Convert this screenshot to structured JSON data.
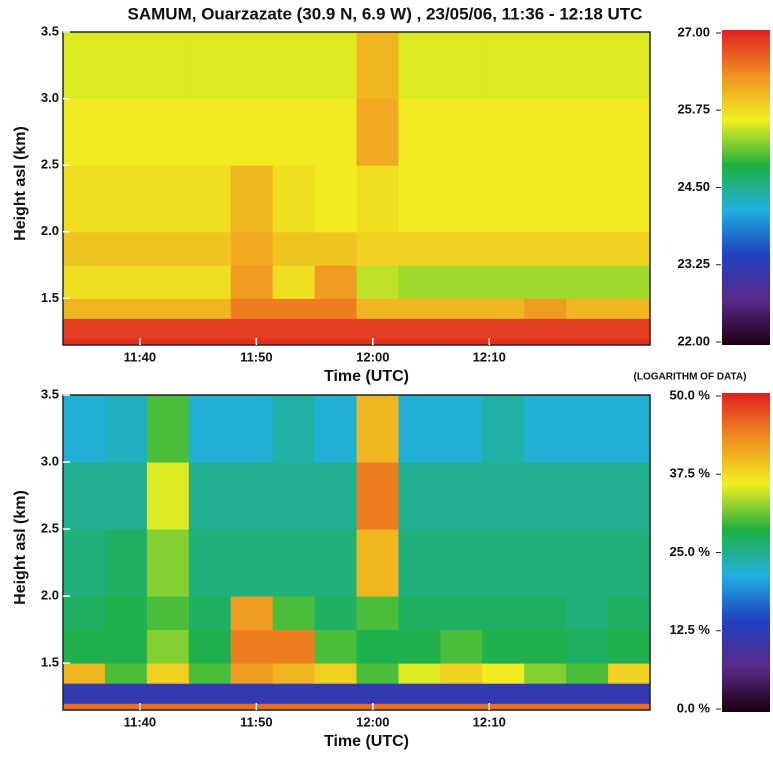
{
  "chart_data": [
    {
      "type": "heatmap",
      "title": "SAMUM, Ouarzazate (30.9 N, 6.9 W) , 23/05/06, 11:36 - 12:18 UTC",
      "xlabel": "Time (UTC)",
      "ylabel": "Height asl (km)",
      "xlim": [
        693.4,
        743.8
      ],
      "xticks": [
        {
          "value": 700,
          "label": "11:40"
        },
        {
          "value": 710,
          "label": "11:50"
        },
        {
          "value": 720,
          "label": "12:00"
        },
        {
          "value": 730,
          "label": "12:10"
        }
      ],
      "ylim": [
        1.15,
        3.5
      ],
      "yticks": [
        1.5,
        {
          "value": 2,
          "label": "2.0"
        },
        2.5,
        {
          "value": 3,
          "label": "3.0"
        },
        3.5
      ],
      "xbins": [
        693.4,
        697,
        700.6,
        704.2,
        707.8,
        711.4,
        715,
        718.6,
        722.2,
        725.8,
        729.4,
        733,
        736.6,
        740.2,
        743.8
      ],
      "ybins": [
        1.15,
        1.2,
        1.35,
        1.5,
        1.75,
        2.0,
        2.5,
        3.0,
        3.5
      ],
      "z": [
        [
          26.9,
          26.9,
          26.9,
          26.9,
          26.9,
          26.9,
          26.9,
          26.9,
          26.9,
          26.9,
          26.9,
          26.9,
          26.9,
          26.9
        ],
        [
          26.8,
          26.8,
          26.8,
          26.8,
          26.8,
          26.8,
          26.8,
          26.8,
          26.8,
          26.8,
          26.8,
          26.8,
          26.8,
          26.8
        ],
        [
          26,
          26,
          26,
          26,
          26.4,
          26.4,
          26.4,
          26,
          26,
          26,
          26,
          26.2,
          26,
          26
        ],
        [
          25.7,
          25.7,
          25.7,
          25.7,
          26.2,
          25.7,
          26.2,
          25.4,
          25.3,
          25.3,
          25.3,
          25.3,
          25.3,
          25.3
        ],
        [
          25.9,
          25.9,
          25.9,
          25.9,
          26.1,
          25.9,
          25.9,
          25.8,
          25.8,
          25.8,
          25.8,
          25.8,
          25.8,
          25.8
        ],
        [
          25.7,
          25.7,
          25.7,
          25.7,
          26,
          25.7,
          25.6,
          25.7,
          25.6,
          25.6,
          25.6,
          25.6,
          25.6,
          25.6
        ],
        [
          25.6,
          25.6,
          25.6,
          25.6,
          25.6,
          25.6,
          25.6,
          26.1,
          25.6,
          25.6,
          25.6,
          25.6,
          25.6,
          25.6
        ],
        [
          25.5,
          25.5,
          25.5,
          25.5,
          25.5,
          25.5,
          25.5,
          26,
          25.5,
          25.5,
          25.5,
          25.5,
          25.5,
          25.5
        ]
      ],
      "zlim": [
        22,
        27
      ],
      "zticks": [
        {
          "value": 22,
          "label": "22.00"
        },
        23.25,
        {
          "value": 24.5,
          "label": "24.50"
        },
        25.75,
        {
          "value": 27,
          "label": "27.00"
        }
      ],
      "colorscale": [
        "#1a0010",
        "#5a2a8a",
        "#2040c0",
        "#20b0e0",
        "#20b040",
        "#f0f020",
        "#f09020",
        "#e02020"
      ]
    },
    {
      "type": "heatmap",
      "colorbar_label": "(LOGARITHM OF DATA)",
      "xlabel": "Time (UTC)",
      "ylabel": "Height asl (km)",
      "xlim": [
        693.4,
        743.8
      ],
      "xticks": [
        {
          "value": 700,
          "label": "11:40"
        },
        {
          "value": 710,
          "label": "11:50"
        },
        {
          "value": 720,
          "label": "12:00"
        },
        {
          "value": 730,
          "label": "12:10"
        }
      ],
      "ylim": [
        1.15,
        3.5
      ],
      "yticks": [
        1.5,
        {
          "value": 2,
          "label": "2.0"
        },
        2.5,
        {
          "value": 3,
          "label": "3.0"
        },
        3.5
      ],
      "xbins": [
        693.4,
        697,
        700.6,
        704.2,
        707.8,
        711.4,
        715,
        718.6,
        722.2,
        725.8,
        729.4,
        733,
        736.6,
        740.2,
        743.8
      ],
      "ybins": [
        1.15,
        1.2,
        1.35,
        1.5,
        1.75,
        2.0,
        2.5,
        3.0,
        3.5
      ],
      "z": [
        [
          45,
          45,
          45,
          45,
          45,
          45,
          45,
          45,
          45,
          45,
          45,
          45,
          45,
          45
        ],
        [
          12,
          12,
          12,
          12,
          12,
          12,
          12,
          12,
          12,
          12,
          12,
          12,
          12,
          12
        ],
        [
          40,
          30,
          38,
          30,
          42,
          40,
          38,
          30,
          35,
          38,
          36,
          32,
          30,
          38
        ],
        [
          28,
          28,
          32,
          28,
          44,
          44,
          30,
          28,
          28,
          30,
          28,
          28,
          27,
          28
        ],
        [
          27,
          28,
          30,
          27,
          42,
          30,
          27,
          30,
          27,
          27,
          27,
          27,
          26,
          27
        ],
        [
          26,
          27,
          32,
          26,
          26,
          26,
          26,
          40,
          26,
          26,
          26,
          26,
          26,
          26
        ],
        [
          25,
          25,
          35,
          25,
          25,
          25,
          25,
          44,
          25,
          25,
          25,
          25,
          25,
          25
        ],
        [
          22,
          23,
          30,
          22,
          22,
          24,
          22,
          40,
          22,
          22,
          24,
          22,
          22,
          22
        ]
      ],
      "zlim": [
        0,
        50
      ],
      "zticks": [
        {
          "value": 0,
          "label": "0.0 %"
        },
        {
          "value": 12.5,
          "label": "12.5 %"
        },
        {
          "value": 25,
          "label": "25.0 %"
        },
        {
          "value": 37.5,
          "label": "37.5 %"
        },
        {
          "value": 50,
          "label": "50.0 %"
        }
      ],
      "colorscale": [
        "#1a0010",
        "#5a2a8a",
        "#2040c0",
        "#20b0e0",
        "#20b040",
        "#f0f020",
        "#f09020",
        "#e02020"
      ]
    }
  ]
}
